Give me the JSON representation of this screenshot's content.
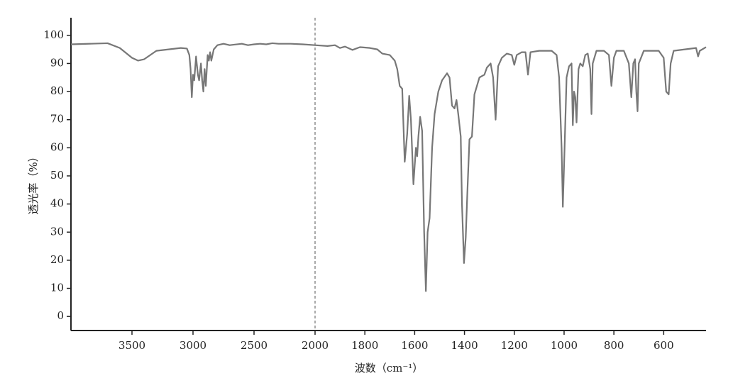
{
  "chart_data": {
    "type": "line",
    "x_label": "波数（cm⁻¹）",
    "y_label": "透光率（%）",
    "xlim": [
      4000,
      430
    ],
    "x_break": 2000,
    "xticks": [
      3500,
      3000,
      2500,
      2000,
      1800,
      1600,
      1400,
      1200,
      1000,
      800,
      600
    ],
    "ylim": [
      -5,
      105
    ],
    "yticks": [
      0,
      10,
      20,
      30,
      40,
      50,
      60,
      70,
      80,
      90,
      100
    ],
    "x": [
      4000,
      3700,
      3600,
      3500,
      3450,
      3400,
      3300,
      3200,
      3100,
      3050,
      3030,
      3020,
      3010,
      3000,
      2990,
      2975,
      2960,
      2950,
      2935,
      2925,
      2915,
      2905,
      2895,
      2880,
      2870,
      2860,
      2850,
      2830,
      2800,
      2750,
      2700,
      2600,
      2550,
      2500,
      2450,
      2400,
      2350,
      2300,
      2200,
      2100,
      2000,
      1950,
      1920,
      1900,
      1880,
      1850,
      1820,
      1780,
      1750,
      1730,
      1700,
      1680,
      1670,
      1660,
      1650,
      1640,
      1630,
      1622,
      1615,
      1605,
      1595,
      1590,
      1585,
      1578,
      1570,
      1562,
      1555,
      1548,
      1540,
      1530,
      1520,
      1505,
      1490,
      1470,
      1460,
      1450,
      1440,
      1432,
      1425,
      1415,
      1410,
      1402,
      1395,
      1388,
      1380,
      1370,
      1360,
      1340,
      1320,
      1310,
      1295,
      1285,
      1275,
      1265,
      1250,
      1230,
      1210,
      1200,
      1190,
      1170,
      1155,
      1145,
      1135,
      1100,
      1050,
      1030,
      1020,
      1010,
      1005,
      998,
      990,
      980,
      970,
      965,
      960,
      955,
      950,
      942,
      935,
      925,
      915,
      905,
      895,
      890,
      885,
      870,
      840,
      820,
      810,
      800,
      790,
      760,
      740,
      730,
      722,
      715,
      710,
      705,
      700,
      680,
      620,
      600,
      590,
      580,
      572,
      560,
      470,
      462,
      455,
      430
    ],
    "series": [
      {
        "color": "#777777",
        "values": [
          96.8,
          97.2,
          95.5,
          92,
          91,
          91.5,
          94.5,
          95,
          95.5,
          95.3,
          93,
          88,
          78,
          86,
          84,
          92.5,
          86,
          84,
          90,
          84,
          80,
          88,
          82,
          93,
          91,
          94,
          91,
          95,
          96.5,
          97,
          96.5,
          97,
          96.5,
          96.8,
          97,
          96.8,
          97.2,
          97,
          97,
          96.8,
          96.5,
          96.2,
          96.5,
          95.5,
          96,
          94.8,
          95.8,
          95.5,
          95,
          93.5,
          93,
          91,
          88,
          82,
          81,
          55,
          65,
          78.5,
          70,
          47,
          60,
          57,
          64,
          71,
          66,
          30,
          9,
          30,
          35,
          60,
          72,
          80,
          84,
          86.5,
          85,
          75,
          74,
          77,
          72,
          64,
          40,
          19,
          28,
          45,
          63,
          64,
          79,
          85,
          86,
          88.5,
          90,
          85,
          70,
          89,
          92,
          93.5,
          93,
          89.5,
          93,
          94,
          94,
          86,
          94,
          94.5,
          94.5,
          93,
          85,
          60,
          39,
          60,
          85,
          89,
          90,
          68,
          80,
          78,
          69,
          88,
          90,
          89,
          93,
          93.5,
          88,
          72,
          90,
          94.5,
          94.5,
          93,
          82,
          92,
          94.5,
          94.5,
          90,
          78,
          90,
          91.5,
          80,
          73,
          90,
          94.5,
          94.5,
          92,
          80,
          79,
          90,
          94.5,
          95.5,
          92.5,
          94.5,
          95.8
        ]
      }
    ]
  }
}
